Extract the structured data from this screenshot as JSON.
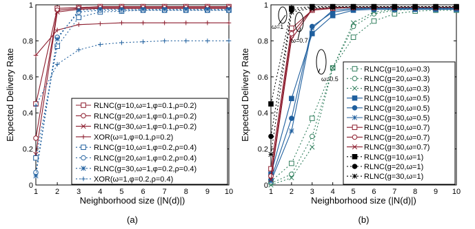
{
  "shared_ylabel": "Expected Delivery Rate",
  "chart_data": [
    {
      "type": "line",
      "panel_label": "(a)",
      "xlabel": "Neighborhood size (|N(d)|)",
      "ylabel": "Expected Delivery Rate",
      "x": [
        1,
        2,
        3,
        4,
        5,
        6,
        7,
        8,
        9,
        10
      ],
      "xticks": [
        "1",
        "2",
        "3",
        "4",
        "5",
        "6",
        "7",
        "8",
        "9",
        "10"
      ],
      "yticks": [
        "0",
        "0.2",
        "0.4",
        "0.6",
        "0.8",
        "1"
      ],
      "xlim": [
        1,
        10
      ],
      "ylim": [
        0,
        1
      ],
      "grid": false,
      "legend_position": "bottom-right",
      "series": [
        {
          "name": "RLNC(g=10,ω=1,φ=0.1,ρ=0.2)",
          "color": "#8b1a2b",
          "dash": "solid",
          "marker": "square",
          "values": [
            0.45,
            0.98,
            0.985,
            0.99,
            0.99,
            0.99,
            0.99,
            0.99,
            0.99,
            0.99
          ]
        },
        {
          "name": "RLNC(g=20,ω=1,φ=0.1,ρ=0.2)",
          "color": "#8b1a2b",
          "dash": "solid",
          "marker": "circle",
          "values": [
            0.26,
            0.97,
            0.98,
            0.985,
            0.985,
            0.985,
            0.985,
            0.985,
            0.985,
            0.985
          ]
        },
        {
          "name": "RLNC(g=30,ω=1,φ=0.1,ρ=0.2)",
          "color": "#8b1a2b",
          "dash": "solid",
          "marker": "x",
          "values": [
            0.17,
            0.96,
            0.975,
            0.98,
            0.98,
            0.98,
            0.98,
            0.98,
            0.98,
            0.98
          ]
        },
        {
          "name": "XOR(ω=1,φ=0.1,ρ=0.2)",
          "color": "#8b1a2b",
          "dash": "solid",
          "marker": "plus",
          "values": [
            0.72,
            0.86,
            0.89,
            0.895,
            0.9,
            0.9,
            0.9,
            0.9,
            0.9,
            0.9
          ]
        },
        {
          "name": "RLNC(g=10,ω=1,φ=0.2,ρ=0.4)",
          "color": "#1f5f9e",
          "dash": "dotted",
          "marker": "square",
          "values": [
            0.15,
            0.77,
            0.93,
            0.96,
            0.965,
            0.97,
            0.97,
            0.97,
            0.97,
            0.97
          ]
        },
        {
          "name": "RLNC(g=20,ω=1,φ=0.2,ρ=0.4)",
          "color": "#1f5f9e",
          "dash": "dotted",
          "marker": "circle",
          "values": [
            0.07,
            0.82,
            0.96,
            0.97,
            0.97,
            0.97,
            0.97,
            0.97,
            0.97,
            0.97
          ]
        },
        {
          "name": "RLNC(g=30,ω=1,φ=0.2,ρ=0.4)",
          "color": "#1f5f9e",
          "dash": "dotted",
          "marker": "asterisk",
          "values": [
            0.05,
            0.81,
            0.97,
            0.975,
            0.975,
            0.975,
            0.975,
            0.975,
            0.975,
            0.975
          ]
        },
        {
          "name": "XOR(ω=1,φ=0.2,ρ=0.4)",
          "color": "#1f5f9e",
          "dash": "dotted",
          "marker": "plus",
          "values": [
            0.44,
            0.67,
            0.75,
            0.78,
            0.79,
            0.795,
            0.8,
            0.8,
            0.8,
            0.8
          ]
        }
      ]
    },
    {
      "type": "line",
      "panel_label": "(b)",
      "xlabel": "Neighborhood size (|N(d)|)",
      "ylabel": "Expected Delivery Rate",
      "x": [
        1,
        2,
        3,
        4,
        5,
        6,
        7,
        8,
        9,
        10
      ],
      "xticks": [
        "1",
        "2",
        "3",
        "4",
        "5",
        "6",
        "7",
        "8",
        "9",
        "10"
      ],
      "yticks": [
        "0",
        "0.2",
        "0.4",
        "0.6",
        "0.8",
        "1"
      ],
      "xlim": [
        1,
        10
      ],
      "ylim": [
        0,
        1
      ],
      "grid": false,
      "legend_position": "bottom-right",
      "annotations": [
        "ω=1",
        "ω=0.7",
        "ω=0.5",
        "ω=0.3"
      ],
      "series": [
        {
          "name": "RLNC(g=10,ω=0.3)",
          "color": "#2e7d5b",
          "dash": "dotted",
          "marker": "square-open",
          "values": [
            0.02,
            0.12,
            0.37,
            0.65,
            0.82,
            0.91,
            0.95,
            0.965,
            0.97,
            0.97
          ]
        },
        {
          "name": "RLNC(g=20,ω=0.3)",
          "color": "#2e7d5b",
          "dash": "dotted",
          "marker": "circle-open",
          "values": [
            0.01,
            0.06,
            0.27,
            0.65,
            0.88,
            0.95,
            0.97,
            0.975,
            0.975,
            0.975
          ]
        },
        {
          "name": "RLNC(g=30,ω=0.3)",
          "color": "#2e7d5b",
          "dash": "dotted",
          "marker": "x",
          "values": [
            0.0,
            0.04,
            0.21,
            0.65,
            0.9,
            0.96,
            0.975,
            0.98,
            0.98,
            0.98
          ]
        },
        {
          "name": "RLNC(g=10,ω=0.5)",
          "color": "#1f5f9e",
          "dash": "solid",
          "marker": "square-filled",
          "values": [
            0.06,
            0.48,
            0.84,
            0.94,
            0.97,
            0.975,
            0.975,
            0.975,
            0.975,
            0.975
          ]
        },
        {
          "name": "RLNC(g=20,ω=0.5)",
          "color": "#1f5f9e",
          "dash": "solid",
          "marker": "circle-filled",
          "values": [
            0.03,
            0.37,
            0.88,
            0.96,
            0.975,
            0.98,
            0.98,
            0.98,
            0.98,
            0.98
          ]
        },
        {
          "name": "RLNC(g=30,ω=0.5)",
          "color": "#1f5f9e",
          "dash": "solid",
          "marker": "asterisk",
          "values": [
            0.02,
            0.3,
            0.87,
            0.97,
            0.98,
            0.98,
            0.98,
            0.98,
            0.98,
            0.98
          ]
        },
        {
          "name": "RLNC(g=10,ω=0.7)",
          "color": "#8b1a2b",
          "dash": "solid",
          "marker": "square-open",
          "values": [
            0.09,
            0.87,
            0.97,
            0.98,
            0.985,
            0.985,
            0.985,
            0.985,
            0.985,
            0.985
          ]
        },
        {
          "name": "RLNC(g=20,ω=0.7)",
          "color": "#8b1a2b",
          "dash": "solid",
          "marker": "circle-open",
          "values": [
            0.05,
            0.84,
            0.975,
            0.985,
            0.985,
            0.985,
            0.985,
            0.985,
            0.985,
            0.985
          ]
        },
        {
          "name": "RLNC(g=30,ω=0.7)",
          "color": "#8b1a2b",
          "dash": "solid",
          "marker": "x",
          "values": [
            0.03,
            0.81,
            0.975,
            0.985,
            0.985,
            0.985,
            0.985,
            0.985,
            0.985,
            0.985
          ]
        },
        {
          "name": "RLNC(g=10,ω=1)",
          "color": "#000000",
          "dash": "dotted",
          "marker": "square-filled",
          "values": [
            0.45,
            0.98,
            0.99,
            0.99,
            0.99,
            0.99,
            0.99,
            0.99,
            0.99,
            0.99
          ]
        },
        {
          "name": "RLNC(g=20,ω=1)",
          "color": "#000000",
          "dash": "dotted",
          "marker": "circle-filled",
          "values": [
            0.27,
            0.97,
            0.985,
            0.99,
            0.99,
            0.99,
            0.99,
            0.99,
            0.99,
            0.99
          ]
        },
        {
          "name": "RLNC(g=30,ω=1)",
          "color": "#000000",
          "dash": "dotted",
          "marker": "asterisk",
          "values": [
            0.17,
            0.96,
            0.98,
            0.985,
            0.985,
            0.985,
            0.985,
            0.985,
            0.985,
            0.985
          ]
        }
      ]
    }
  ]
}
